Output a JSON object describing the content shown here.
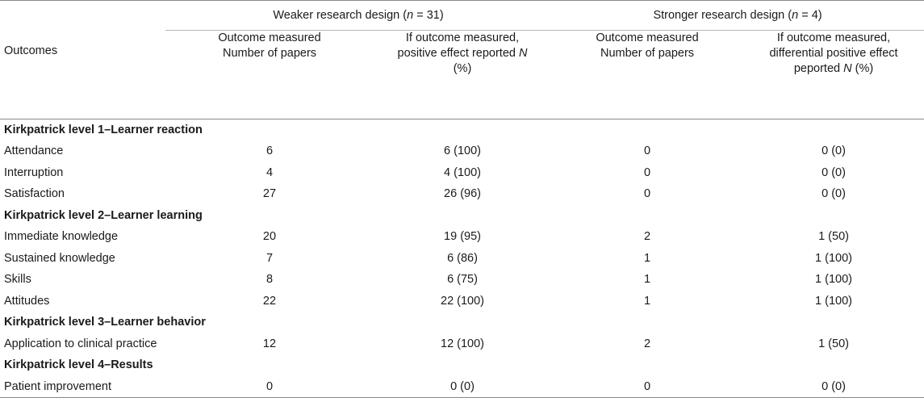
{
  "header": {
    "weaker_group": "Weaker research design (",
    "weaker_n": "n",
    "weaker_count": " = 31)",
    "stronger_group": "Stronger research design (",
    "stronger_n": "n",
    "stronger_count": " = 4)",
    "outcomes": "Outcomes",
    "col_weak_measured_l1": "Outcome measured",
    "col_weak_measured_l2": "Number of papers",
    "col_weak_positive_l1": "If outcome measured,",
    "col_weak_positive_l2": "positive effect reported ",
    "col_weak_positive_N": "N",
    "col_weak_positive_l3": "(%)",
    "col_strong_measured_l1": "Outcome measured",
    "col_strong_measured_l2": "Number of papers",
    "col_strong_positive_l1": "If outcome measured,",
    "col_strong_positive_l2": "differential positive effect",
    "col_strong_positive_l3": "peported ",
    "col_strong_positive_N": "N",
    "col_strong_positive_l3b": " (%)"
  },
  "sections": [
    {
      "title": "Kirkpatrick level 1–Learner reaction",
      "rows": [
        {
          "label": "Attendance",
          "w_measured": "6",
          "w_positive": "6 (100)",
          "s_measured": "0",
          "s_positive": "0 (0)"
        },
        {
          "label": "Interruption",
          "w_measured": "4",
          "w_positive": "4 (100)",
          "s_measured": "0",
          "s_positive": "0 (0)"
        },
        {
          "label": "Satisfaction",
          "w_measured": "27",
          "w_positive": "26 (96)",
          "s_measured": "0",
          "s_positive": "0 (0)"
        }
      ]
    },
    {
      "title": "Kirkpatrick level 2–Learner learning",
      "rows": [
        {
          "label": "Immediate knowledge",
          "w_measured": "20",
          "w_positive": "19 (95)",
          "s_measured": "2",
          "s_positive": "1 (50)"
        },
        {
          "label": "Sustained knowledge",
          "w_measured": "7",
          "w_positive": "6 (86)",
          "s_measured": "1",
          "s_positive": "1 (100)"
        },
        {
          "label": "Skills",
          "w_measured": "8",
          "w_positive": "6 (75)",
          "s_measured": "1",
          "s_positive": "1 (100)"
        },
        {
          "label": "Attitudes",
          "w_measured": "22",
          "w_positive": "22 (100)",
          "s_measured": "1",
          "s_positive": "1 (100)"
        }
      ]
    },
    {
      "title": "Kirkpatrick level 3–Learner behavior",
      "rows": [
        {
          "label": "Application to clinical practice",
          "w_measured": "12",
          "w_positive": "12 (100)",
          "s_measured": "2",
          "s_positive": "1 (50)"
        }
      ]
    },
    {
      "title": "Kirkpatrick level 4–Results",
      "rows": [
        {
          "label": "Patient improvement",
          "w_measured": "0",
          "w_positive": "0 (0)",
          "s_measured": "0",
          "s_positive": "0 (0)"
        }
      ]
    }
  ]
}
